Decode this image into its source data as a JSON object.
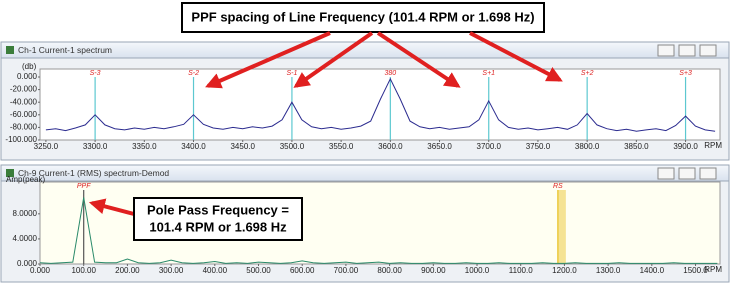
{
  "callouts": {
    "top": "PPF spacing of Line Frequency (101.4 RPM or 1.698 Hz)",
    "bottom": [
      "Pole Pass Frequency =",
      "101.4 RPM or 1.698 Hz"
    ]
  },
  "chart_data": [
    {
      "type": "line",
      "window_title": "Ch-1 Current-1 spectrum",
      "ylabel": "(db)",
      "xlabel": "RPM",
      "color": "#2b2b8f",
      "background": "#ffffff",
      "x": [
        3250,
        3260,
        3270,
        3280,
        3290,
        3300,
        3310,
        3320,
        3330,
        3340,
        3350,
        3360,
        3370,
        3380,
        3390,
        3400,
        3410,
        3420,
        3430,
        3440,
        3450,
        3460,
        3470,
        3480,
        3490,
        3500,
        3510,
        3520,
        3530,
        3540,
        3550,
        3560,
        3570,
        3580,
        3590,
        3600,
        3610,
        3620,
        3630,
        3640,
        3650,
        3660,
        3670,
        3680,
        3690,
        3700,
        3710,
        3720,
        3730,
        3740,
        3750,
        3760,
        3770,
        3780,
        3790,
        3800,
        3810,
        3820,
        3830,
        3840,
        3850,
        3860,
        3870,
        3880,
        3890,
        3900,
        3910,
        3920,
        3930
      ],
      "values": [
        -84,
        -82,
        -85,
        -81,
        -76,
        -60,
        -76,
        -82,
        -84,
        -81,
        -83,
        -80,
        -82,
        -79,
        -75,
        -60,
        -75,
        -81,
        -83,
        -80,
        -82,
        -79,
        -81,
        -78,
        -68,
        -40,
        -68,
        -79,
        -82,
        -80,
        -83,
        -81,
        -78,
        -70,
        -35,
        -3,
        -35,
        -70,
        -79,
        -82,
        -80,
        -83,
        -81,
        -79,
        -68,
        -38,
        -68,
        -80,
        -83,
        -81,
        -84,
        -82,
        -80,
        -83,
        -76,
        -58,
        -76,
        -82,
        -85,
        -83,
        -86,
        -84,
        -82,
        -85,
        -77,
        -62,
        -78,
        -84,
        -86
      ],
      "markers": [
        {
          "label": "S-3",
          "x": 3300,
          "color": "#5cc8d0"
        },
        {
          "label": "S-2",
          "x": 3400,
          "color": "#5cc8d0"
        },
        {
          "label": "S-1",
          "x": 3500,
          "color": "#5cc8d0"
        },
        {
          "label": "380",
          "x": 3600,
          "color": "#5cc8d0"
        },
        {
          "label": "S+1",
          "x": 3700,
          "color": "#5cc8d0"
        },
        {
          "label": "S+2",
          "x": 3800,
          "color": "#5cc8d0"
        },
        {
          "label": "S+3",
          "x": 3900,
          "color": "#5cc8d0"
        }
      ],
      "xlim": [
        3244,
        3935
      ],
      "ylim": [
        -100,
        0
      ],
      "xticks": [
        {
          "value": 3250,
          "label": "3250.0"
        },
        {
          "value": 3300,
          "label": "3300.0"
        },
        {
          "value": 3350,
          "label": "3350.0"
        },
        {
          "value": 3400,
          "label": "3400.0"
        },
        {
          "value": 3450,
          "label": "3450.0"
        },
        {
          "value": 3500,
          "label": "3500.0"
        },
        {
          "value": 3550,
          "label": "3550.0"
        },
        {
          "value": 3600,
          "label": "3600.0"
        },
        {
          "value": 3650,
          "label": "3650.0"
        },
        {
          "value": 3700,
          "label": "3700.0"
        },
        {
          "value": 3750,
          "label": "3750.0"
        },
        {
          "value": 3800,
          "label": "3800.0"
        },
        {
          "value": 3850,
          "label": "3850.0"
        },
        {
          "value": 3900,
          "label": "3900.0"
        }
      ],
      "yticks": [
        {
          "value": 0,
          "label": "0.000"
        },
        {
          "value": -20,
          "label": "-20.000"
        },
        {
          "value": -40,
          "label": "-40.000"
        },
        {
          "value": -60,
          "label": "-60.000"
        },
        {
          "value": -80,
          "label": "-80.000"
        },
        {
          "value": -100,
          "label": "-100.000"
        }
      ]
    },
    {
      "type": "line",
      "window_title": "Ch-9 Current-1 (RMS) spectrum-Demod",
      "ylabel": "Amp(peak)",
      "xlabel": "RPM",
      "color": "#2a8a6a",
      "background": "#fffff2",
      "x": [
        0,
        25,
        50,
        75,
        100,
        125,
        150,
        175,
        200,
        225,
        250,
        275,
        300,
        325,
        350,
        375,
        400,
        425,
        450,
        475,
        500,
        525,
        550,
        575,
        600,
        625,
        650,
        675,
        700,
        725,
        750,
        775,
        800,
        825,
        850,
        875,
        900,
        925,
        950,
        975,
        1000,
        1025,
        1050,
        1075,
        1100,
        1125,
        1150,
        1175,
        1200,
        1225,
        1250,
        1275,
        1300,
        1325,
        1350,
        1375,
        1400,
        1425,
        1450,
        1475,
        1500,
        1525,
        1550
      ],
      "values": [
        0.2,
        0.1,
        0.2,
        0.3,
        10.6,
        0.3,
        0.2,
        0.2,
        0.8,
        0.2,
        0.1,
        0.2,
        0.6,
        0.2,
        0.1,
        0.2,
        0.4,
        0.1,
        0.2,
        0.1,
        0.3,
        0.2,
        0.1,
        0.2,
        0.5,
        0.2,
        0.1,
        0.2,
        0.3,
        0.1,
        0.2,
        0.3,
        0.1,
        0.2,
        0.1,
        0.1,
        0.2,
        0.1,
        0.1,
        0.2,
        0.1,
        0.1,
        0.2,
        0.1,
        0.1,
        0.1,
        0.2,
        0.1,
        0.1,
        0.2,
        0.1,
        0.1,
        0.1,
        0.2,
        0.1,
        0.1,
        0.1,
        0.1,
        0.2,
        0.1,
        0.1,
        0.1,
        0.1
      ],
      "markers": [
        {
          "label": "PPF",
          "x": 100,
          "color": "#555555"
        },
        {
          "label": "RS",
          "x": 1185,
          "color": "#e8c020"
        }
      ],
      "xlim": [
        0,
        1556
      ],
      "ylim": [
        0,
        11.8
      ],
      "xticks": [
        {
          "value": 0,
          "label": "0.000"
        },
        {
          "value": 100,
          "label": "100.00"
        },
        {
          "value": 200,
          "label": "200.00"
        },
        {
          "value": 300,
          "label": "300.00"
        },
        {
          "value": 400,
          "label": "400.00"
        },
        {
          "value": 500,
          "label": "500.00"
        },
        {
          "value": 600,
          "label": "600.00"
        },
        {
          "value": 700,
          "label": "700.00"
        },
        {
          "value": 800,
          "label": "800.00"
        },
        {
          "value": 900,
          "label": "900.00"
        },
        {
          "value": 1000,
          "label": "1000.0"
        },
        {
          "value": 1100,
          "label": "1100.0"
        },
        {
          "value": 1200,
          "label": "1200.0"
        },
        {
          "value": 1300,
          "label": "1300.0"
        },
        {
          "value": 1400,
          "label": "1400.0"
        },
        {
          "value": 1500,
          "label": "1500.0"
        }
      ],
      "yticks": [
        {
          "value": 0,
          "label": "0.000"
        },
        {
          "value": 4,
          "label": "4.0000"
        },
        {
          "value": 8,
          "label": "8.0000"
        }
      ]
    }
  ]
}
